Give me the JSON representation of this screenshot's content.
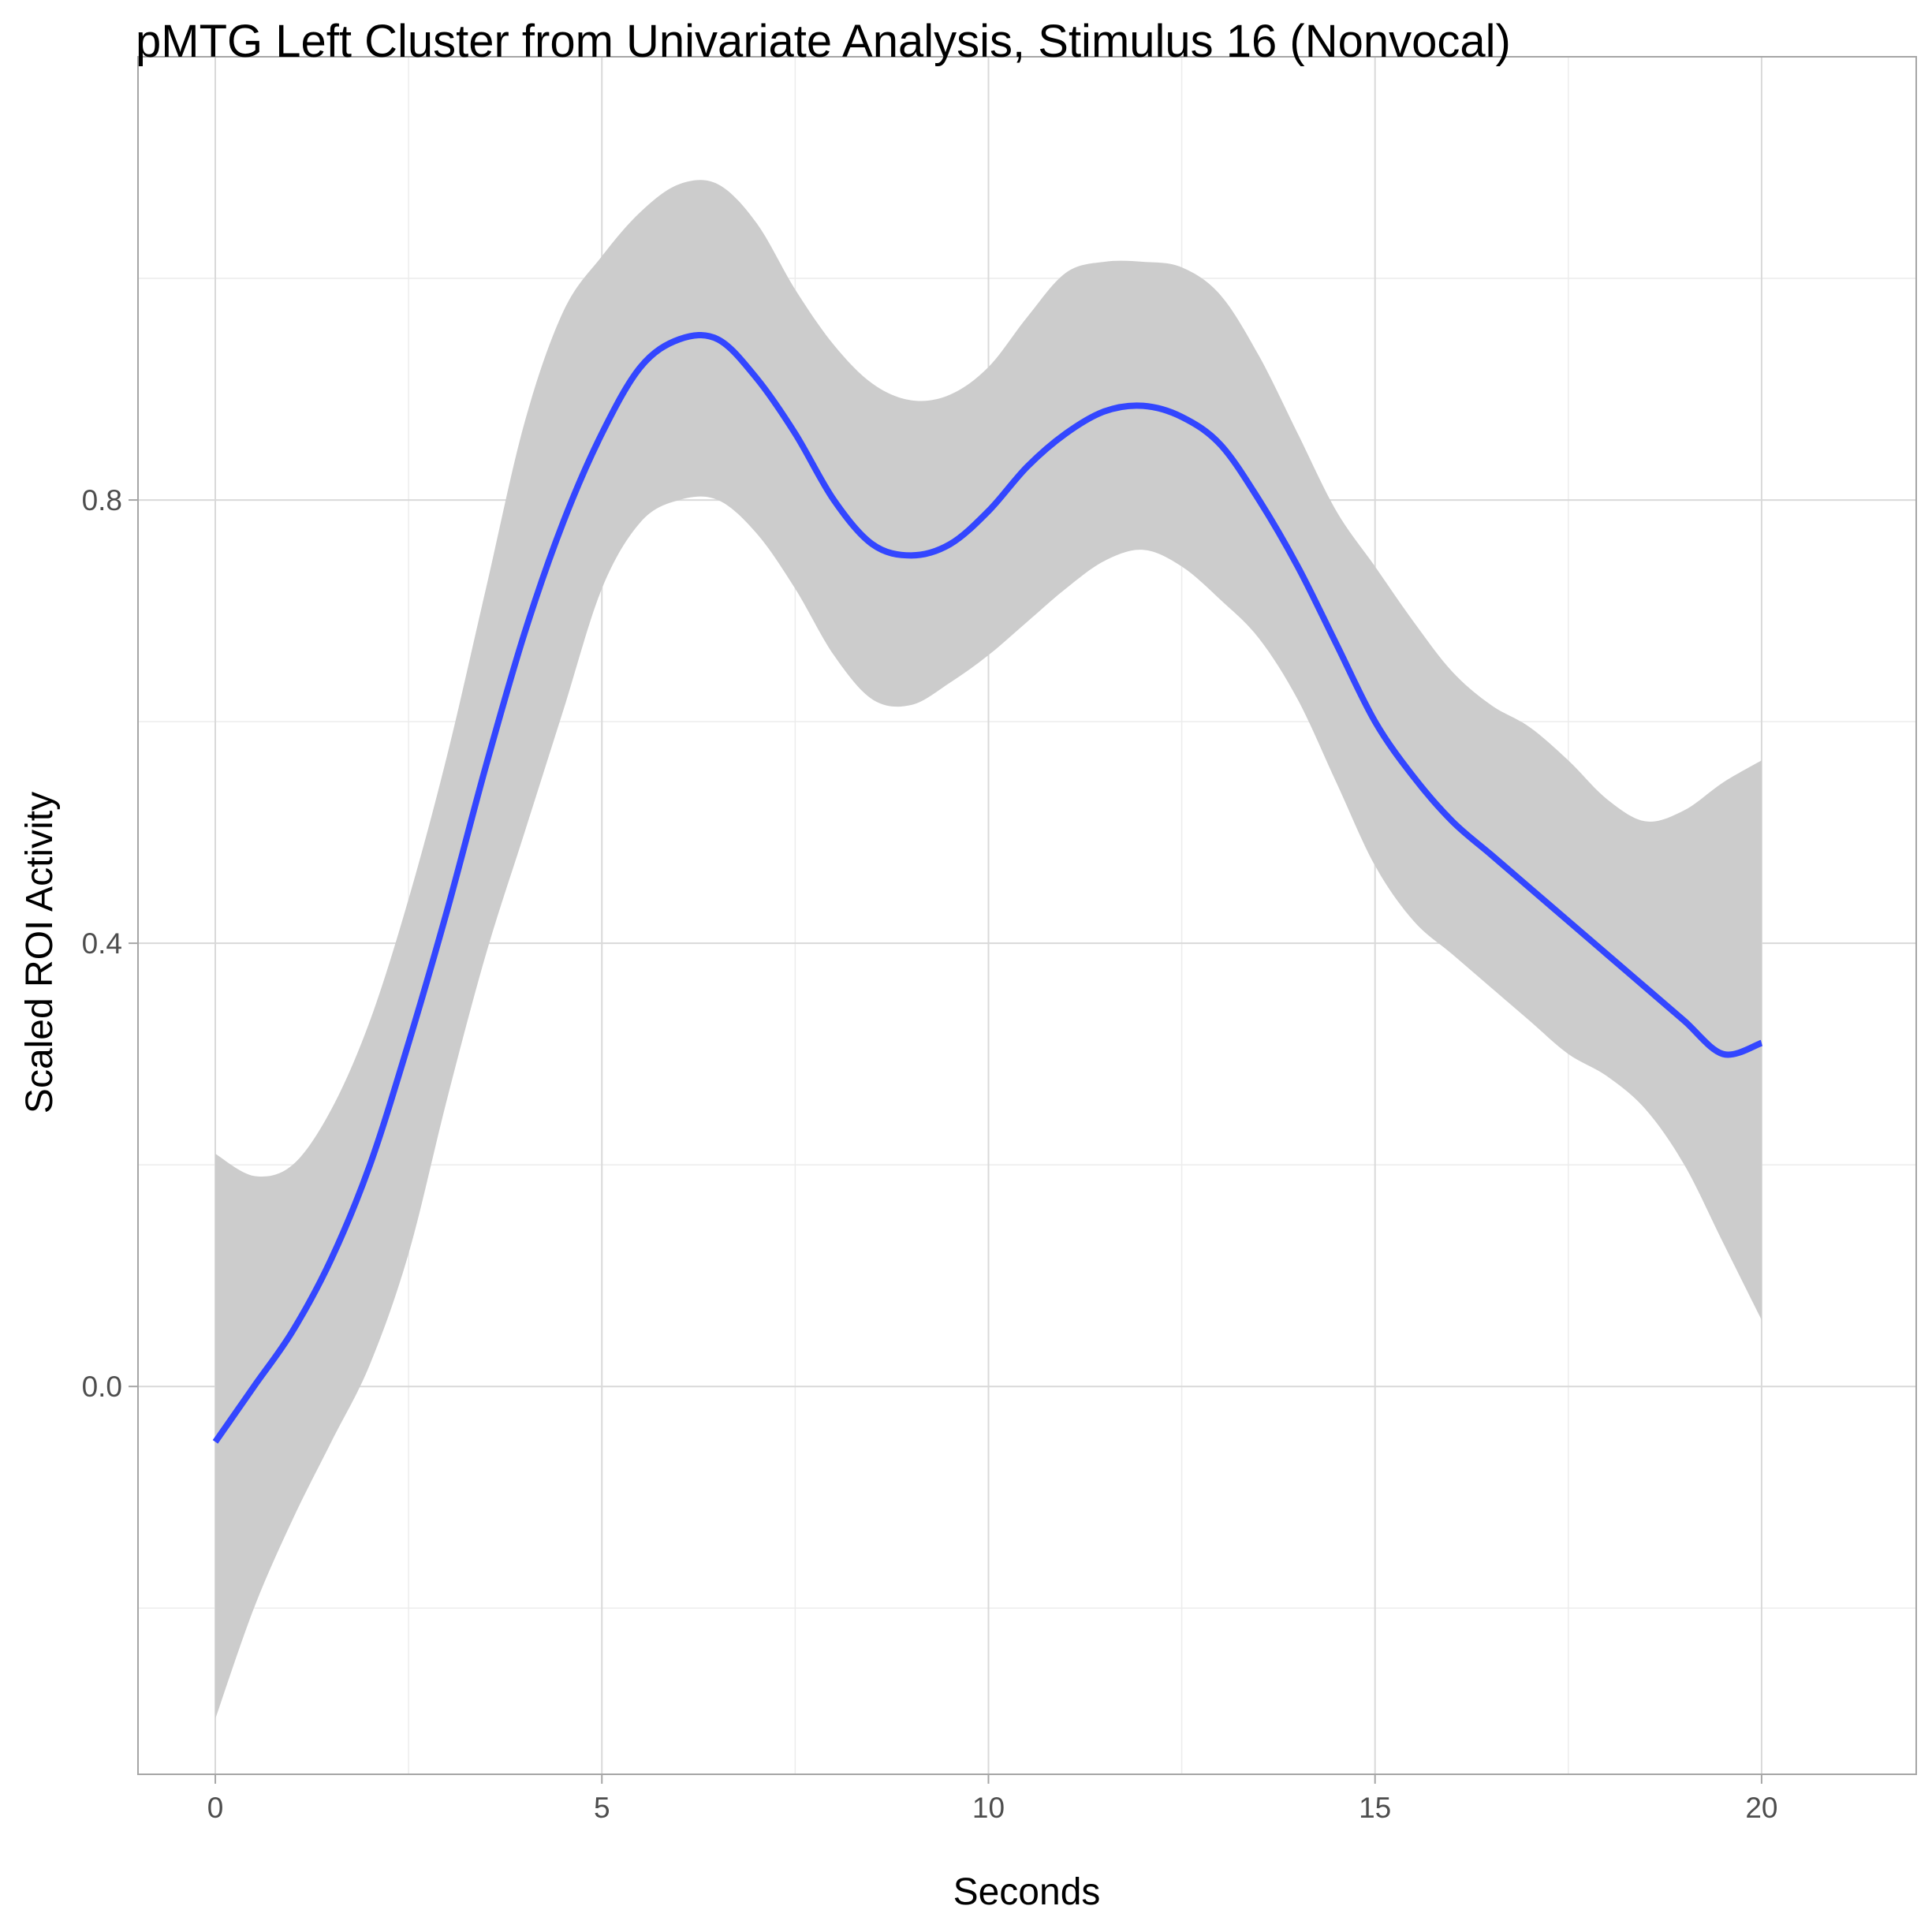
{
  "chart_data": {
    "type": "line",
    "title": "pMTG Left Cluster from Univariate Analysis, Stimulus 16 (Nonvocal)",
    "xlabel": "Seconds",
    "ylabel": "Scaled ROI Activity",
    "xlim": [
      -1,
      22
    ],
    "ylim": [
      -0.35,
      1.2
    ],
    "x_ticks": [
      0,
      5,
      10,
      15,
      20
    ],
    "x_tick_labels": [
      "0",
      "5",
      "10",
      "15",
      "20"
    ],
    "y_ticks": [
      0.0,
      0.4,
      0.8
    ],
    "y_tick_labels": [
      "0.0",
      "0.4",
      "0.8"
    ],
    "grid": true,
    "legend": "none",
    "colors": {
      "line": "#3346ff",
      "band": "#cccccc",
      "grid_major": "#d9d9d9",
      "grid_minor": "#ececec",
      "frame": "#a6a6a6"
    },
    "series": [
      {
        "x": [
          0,
          0.5,
          1,
          1.5,
          2,
          2.5,
          3,
          3.5,
          4,
          4.5,
          5,
          5.5,
          6,
          6.5,
          7,
          7.5,
          8,
          8.5,
          9,
          9.5,
          10,
          10.5,
          11,
          11.5,
          12,
          12.5,
          13,
          13.5,
          14,
          14.5,
          15,
          15.5,
          16,
          16.5,
          17,
          17.5,
          18,
          18.5,
          19,
          19.5,
          20
        ],
        "y": [
          -0.05,
          0.0,
          0.05,
          0.115,
          0.2,
          0.31,
          0.43,
          0.56,
          0.68,
          0.78,
          0.86,
          0.92,
          0.945,
          0.945,
          0.91,
          0.86,
          0.8,
          0.76,
          0.75,
          0.76,
          0.79,
          0.83,
          0.86,
          0.88,
          0.885,
          0.875,
          0.85,
          0.8,
          0.74,
          0.67,
          0.6,
          0.55,
          0.51,
          0.48,
          0.45,
          0.42,
          0.39,
          0.36,
          0.33,
          0.3,
          0.31
        ],
        "lower": [
          -0.3,
          -0.2,
          -0.12,
          -0.05,
          0.02,
          0.12,
          0.26,
          0.39,
          0.5,
          0.61,
          0.72,
          0.78,
          0.8,
          0.8,
          0.77,
          0.72,
          0.66,
          0.62,
          0.615,
          0.635,
          0.66,
          0.69,
          0.72,
          0.745,
          0.755,
          0.74,
          0.71,
          0.675,
          0.62,
          0.545,
          0.47,
          0.42,
          0.39,
          0.36,
          0.33,
          0.3,
          0.28,
          0.25,
          0.2,
          0.13,
          0.06
        ],
        "upper": [
          0.21,
          0.19,
          0.2,
          0.25,
          0.33,
          0.44,
          0.57,
          0.72,
          0.87,
          0.97,
          1.02,
          1.06,
          1.085,
          1.085,
          1.05,
          0.99,
          0.94,
          0.905,
          0.89,
          0.895,
          0.92,
          0.965,
          1.005,
          1.015,
          1.015,
          1.01,
          0.985,
          0.93,
          0.86,
          0.79,
          0.74,
          0.69,
          0.645,
          0.615,
          0.595,
          0.565,
          0.53,
          0.51,
          0.52,
          0.545,
          0.565
        ]
      }
    ]
  }
}
